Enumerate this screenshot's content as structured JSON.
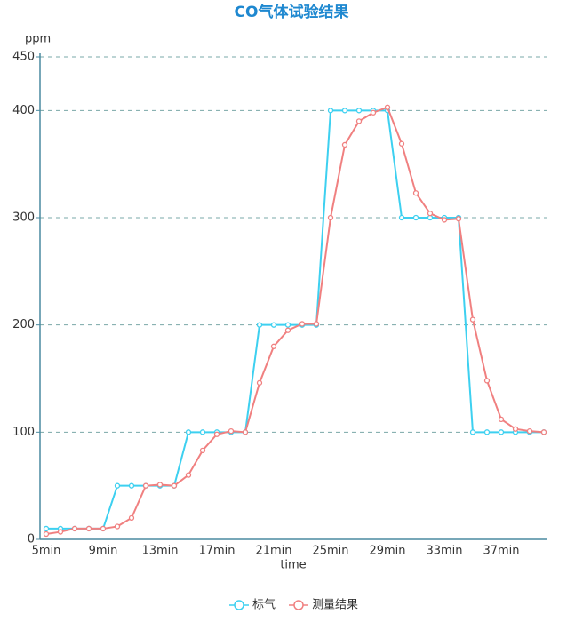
{
  "chart_data": {
    "type": "line",
    "title": "CO气体试验结果",
    "y_label": "ppm",
    "x_label": "time",
    "categories": [
      "5min",
      null,
      null,
      null,
      "9min",
      null,
      null,
      null,
      "13min",
      null,
      null,
      null,
      "17min",
      null,
      null,
      null,
      "21min",
      null,
      null,
      null,
      "25min",
      null,
      null,
      null,
      "29min",
      null,
      null,
      null,
      "33min",
      null,
      null,
      null,
      "37min",
      null,
      null,
      null
    ],
    "series": [
      {
        "name": "标气",
        "color": "#3dd0f0",
        "values": [
          10,
          10,
          10,
          10,
          10,
          50,
          50,
          50,
          50,
          50,
          100,
          100,
          100,
          100,
          100,
          200,
          200,
          200,
          200,
          200,
          400,
          400,
          400,
          400,
          400,
          300,
          300,
          300,
          300,
          300,
          100,
          100,
          100,
          100,
          100,
          100
        ]
      },
      {
        "name": "测量结果",
        "color": "#f08080",
        "values": [
          5,
          7,
          10,
          10,
          10,
          12,
          20,
          50,
          51,
          50,
          60,
          83,
          98,
          101,
          100,
          146,
          180,
          195,
          201,
          201,
          300,
          368,
          390,
          398,
          403,
          369,
          323,
          304,
          298,
          299,
          205,
          148,
          112,
          103,
          101,
          100
        ]
      }
    ],
    "ylim": [
      0,
      450
    ],
    "yticks": [
      0,
      100,
      200,
      300,
      400,
      450
    ],
    "grid": true
  }
}
